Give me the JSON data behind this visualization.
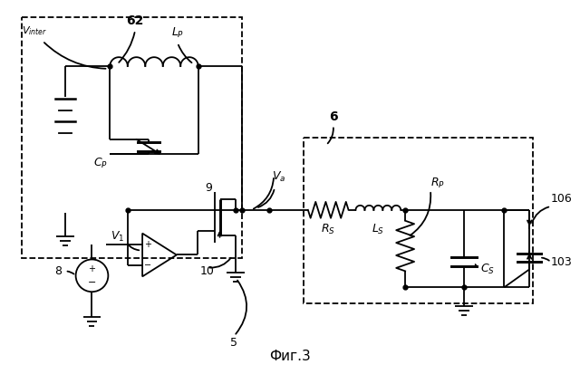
{
  "title": "Фиг.3",
  "bg": "#ffffff",
  "lw": 1.3,
  "fig_w": 6.4,
  "fig_h": 4.13,
  "dpi": 100
}
